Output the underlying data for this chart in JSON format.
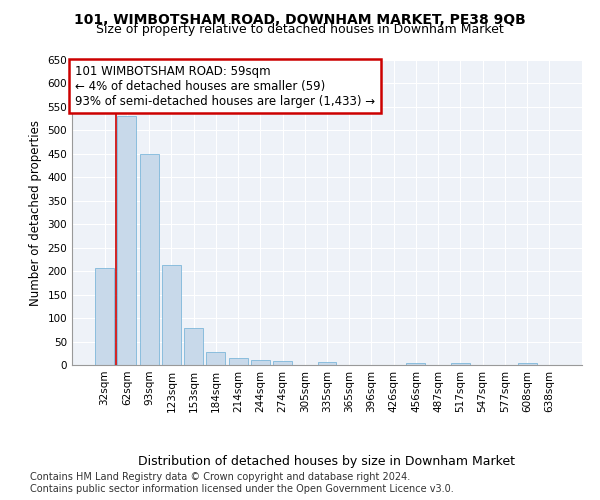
{
  "title": "101, WIMBOTSHAM ROAD, DOWNHAM MARKET, PE38 9QB",
  "subtitle": "Size of property relative to detached houses in Downham Market",
  "xlabel": "Distribution of detached houses by size in Downham Market",
  "ylabel": "Number of detached properties",
  "footnote1": "Contains HM Land Registry data © Crown copyright and database right 2024.",
  "footnote2": "Contains public sector information licensed under the Open Government Licence v3.0.",
  "categories": [
    "32sqm",
    "62sqm",
    "93sqm",
    "123sqm",
    "153sqm",
    "184sqm",
    "214sqm",
    "244sqm",
    "274sqm",
    "305sqm",
    "335sqm",
    "365sqm",
    "396sqm",
    "426sqm",
    "456sqm",
    "487sqm",
    "517sqm",
    "547sqm",
    "577sqm",
    "608sqm",
    "638sqm"
  ],
  "values": [
    207,
    530,
    450,
    213,
    78,
    28,
    15,
    10,
    8,
    0,
    7,
    0,
    0,
    0,
    5,
    0,
    5,
    0,
    0,
    5,
    0
  ],
  "bar_color": "#c8d9ea",
  "bar_edge_color": "#6aaed6",
  "red_line_x": 0.5,
  "red_line_color": "#cc0000",
  "annotation_text": "101 WIMBOTSHAM ROAD: 59sqm\n← 4% of detached houses are smaller (59)\n93% of semi-detached houses are larger (1,433) →",
  "annotation_box_facecolor": "#ffffff",
  "annotation_box_edgecolor": "#cc0000",
  "ylim": [
    0,
    650
  ],
  "yticks": [
    0,
    50,
    100,
    150,
    200,
    250,
    300,
    350,
    400,
    450,
    500,
    550,
    600,
    650
  ],
  "plot_bg_color": "#eef2f8",
  "grid_color": "#ffffff",
  "title_fontsize": 10,
  "subtitle_fontsize": 9,
  "ylabel_fontsize": 8.5,
  "xlabel_fontsize": 9,
  "tick_fontsize": 7.5,
  "footnote_fontsize": 7,
  "annotation_fontsize": 8.5
}
